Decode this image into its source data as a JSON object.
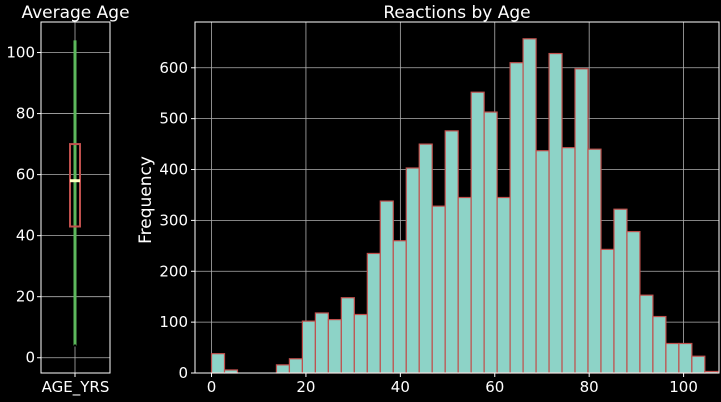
{
  "chart_data": [
    {
      "type": "box",
      "title": "Average Age",
      "categories": [
        "AGE_YRS"
      ],
      "ylim": [
        -5,
        110
      ],
      "yticks": [
        0,
        20,
        40,
        60,
        80,
        100
      ],
      "stats": {
        "whisker_low": 4,
        "q1": 43,
        "median": 58,
        "q3": 70,
        "whisker_high": 104
      },
      "grid": true,
      "colors": {
        "box": "#c0504d",
        "whisker": "#5cb85c",
        "median": "#ffffbf",
        "grid": "#b0b0b0"
      }
    },
    {
      "type": "bar",
      "title": "Reactions by Age",
      "ylabel": "Frequency",
      "xlim": [
        -3.5,
        107.5
      ],
      "ylim": [
        0,
        690
      ],
      "xticks": [
        0,
        20,
        40,
        60,
        80,
        100
      ],
      "yticks": [
        0,
        100,
        200,
        300,
        400,
        500,
        600
      ],
      "bin_start": 0,
      "bin_width": 2.75,
      "values": [
        38,
        6,
        0,
        0,
        0,
        16,
        28,
        102,
        118,
        105,
        148,
        115,
        235,
        338,
        260,
        403,
        450,
        328,
        476,
        345,
        552,
        513,
        345,
        610,
        657,
        437,
        628,
        443,
        598,
        440,
        243,
        322,
        278,
        153,
        111,
        58,
        58,
        33,
        3,
        0,
        0
      ],
      "grid": true,
      "colors": {
        "bar": "#8dd3c7",
        "edge": "#c0504d",
        "grid": "#b0b0b0"
      }
    }
  ]
}
